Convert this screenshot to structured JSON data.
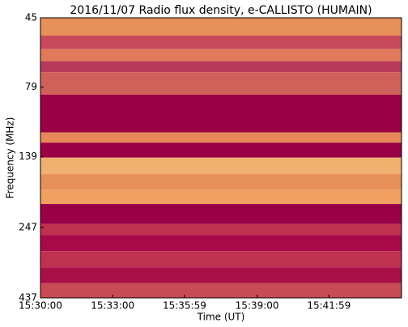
{
  "chart_data": {
    "type": "spectrogram",
    "title": "2016/11/07  Radio flux density, e-CALLISTO (HUMAIN)",
    "x_label": "Time (UT)",
    "y_label": "Frequency (MHz)",
    "xlim": [
      55800,
      56700
    ],
    "xticks": [
      {
        "value": 55800,
        "label": "15:30:00"
      },
      {
        "value": 55980,
        "label": "15:33:00"
      },
      {
        "value": 56159,
        "label": "15:35:59"
      },
      {
        "value": 56340,
        "label": "15:39:00"
      },
      {
        "value": 56519,
        "label": "15:41:59"
      }
    ],
    "ylim": [
      437,
      45
    ],
    "yticks": [
      45,
      79,
      139,
      247,
      437
    ],
    "log_y": true,
    "bands": [
      {
        "from": 45,
        "to": 52,
        "color": "#e8905a"
      },
      {
        "from": 52,
        "to": 58,
        "color": "#c84a5a"
      },
      {
        "from": 58,
        "to": 64,
        "color": "#e07a5a"
      },
      {
        "from": 64,
        "to": 70,
        "color": "#b83a5a"
      },
      {
        "from": 70,
        "to": 84,
        "color": "#d0605a"
      },
      {
        "from": 84,
        "to": 114,
        "color": "#9a0045"
      },
      {
        "from": 114,
        "to": 124,
        "color": "#e8885a"
      },
      {
        "from": 124,
        "to": 140,
        "color": "#9a0045"
      },
      {
        "from": 140,
        "to": 160,
        "color": "#f0b070"
      },
      {
        "from": 160,
        "to": 182,
        "color": "#e8905a"
      },
      {
        "from": 182,
        "to": 204,
        "color": "#f0a060"
      },
      {
        "from": 204,
        "to": 240,
        "color": "#9a0045"
      },
      {
        "from": 240,
        "to": 262,
        "color": "#c03050"
      },
      {
        "from": 262,
        "to": 299,
        "color": "#a80a48"
      },
      {
        "from": 299,
        "to": 341,
        "color": "#c0304f"
      },
      {
        "from": 341,
        "to": 388,
        "color": "#a81048"
      },
      {
        "from": 388,
        "to": 437,
        "color": "#c84a55"
      }
    ]
  }
}
